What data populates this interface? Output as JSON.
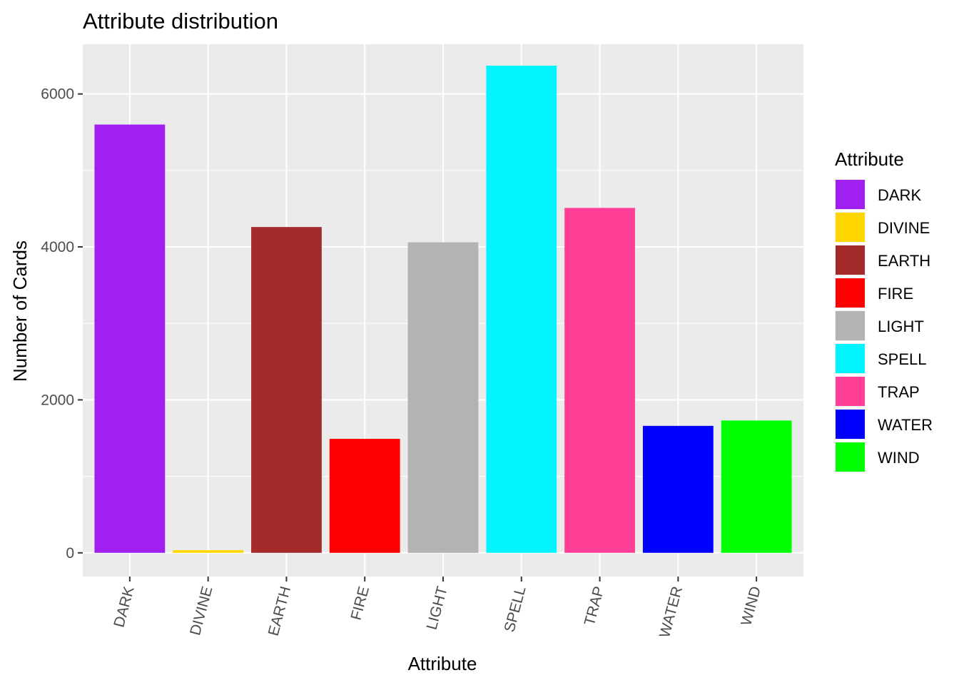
{
  "chart_data": {
    "type": "bar",
    "title": "Attribute distribution",
    "xlabel": "Attribute",
    "ylabel": "Number of Cards",
    "categories": [
      "DARK",
      "DIVINE",
      "EARTH",
      "FIRE",
      "LIGHT",
      "SPELL",
      "TRAP",
      "WATER",
      "WIND"
    ],
    "values": [
      5600,
      35,
      4260,
      1490,
      4060,
      6370,
      4510,
      1660,
      1730
    ],
    "colors": [
      "#A020F0",
      "#FFD700",
      "#A52A2A",
      "#FF0000",
      "#B3B3B3",
      "#00F5FF",
      "#FF4096",
      "#0000FF",
      "#00FF00"
    ],
    "ylim": [
      -310,
      6650
    ],
    "yticks": [
      0,
      2000,
      4000,
      6000
    ],
    "ytick_labels": [
      "0",
      "2000",
      "4000",
      "6000"
    ],
    "grid": true,
    "legend": {
      "title": "Attribute",
      "position": "right",
      "entries": [
        "DARK",
        "DIVINE",
        "EARTH",
        "FIRE",
        "LIGHT",
        "SPELL",
        "TRAP",
        "WATER",
        "WIND"
      ]
    }
  }
}
